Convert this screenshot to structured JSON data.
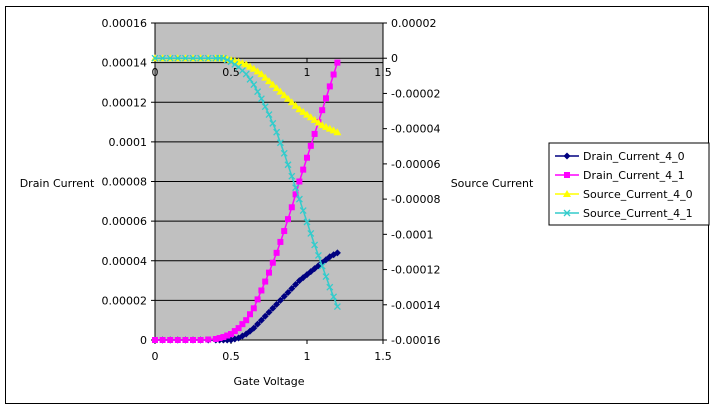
{
  "chart_data": {
    "type": "line",
    "xlabel": "Gate Voltage",
    "ylabel_left": "Drain Current",
    "ylabel_right": "Source Current",
    "x_axis": {
      "min": 0,
      "max": 1.5,
      "ticks": [
        "0",
        "0.5",
        "1",
        "1.5"
      ]
    },
    "y_left": {
      "min": 0,
      "max": 0.00016,
      "ticks": [
        "0",
        "0.00002",
        "0.00004",
        "0.00006",
        "0.00008",
        "0.0001",
        "0.00012",
        "0.00014",
        "0.00016"
      ]
    },
    "y_right": {
      "min": -0.00016,
      "max": 2e-05,
      "ticks": [
        "-0.00016",
        "-0.00014",
        "-0.00012",
        "-0.0001",
        "-0.00008",
        "-0.00006",
        "-0.00004",
        "-0.00002",
        "0",
        "0.00002"
      ]
    },
    "secondary_x_ticks": [
      "0",
      "0.5",
      "1",
      "1.5"
    ],
    "grid": true,
    "legend_position": "right",
    "series": [
      {
        "name": "Drain_Current_4_0",
        "axis": "left",
        "color": "#000080",
        "marker": "diamond",
        "x": [
          0,
          0.1,
          0.2,
          0.3,
          0.4,
          0.45,
          0.5,
          0.55,
          0.6,
          0.65,
          0.7,
          0.75,
          0.8,
          0.85,
          0.9,
          0.95,
          1.0,
          1.05,
          1.1,
          1.15,
          1.2
        ],
        "y": [
          0,
          0,
          0,
          0,
          0,
          0,
          0,
          1e-06,
          3e-06,
          6e-06,
          1e-05,
          1.4e-05,
          1.8e-05,
          2.2e-05,
          2.6e-05,
          3e-05,
          3.3e-05,
          3.6e-05,
          3.9e-05,
          4.2e-05,
          4.4e-05
        ]
      },
      {
        "name": "Drain_Current_4_1",
        "axis": "left",
        "color": "#FF00FF",
        "marker": "square",
        "x": [
          0,
          0.1,
          0.2,
          0.3,
          0.4,
          0.45,
          0.5,
          0.55,
          0.6,
          0.65,
          0.7,
          0.75,
          0.8,
          0.85,
          0.9,
          0.95,
          1.0,
          1.05,
          1.1,
          1.15,
          1.2
        ],
        "y": [
          0,
          0,
          0,
          0,
          5e-07,
          1.5e-06,
          3e-06,
          6e-06,
          1e-05,
          1.6e-05,
          2.5e-05,
          3.4e-05,
          4.4e-05,
          5.5e-05,
          6.7e-05,
          8e-05,
          9.2e-05,
          0.000104,
          0.000116,
          0.000128,
          0.00014
        ]
      },
      {
        "name": "Source_Current_4_0",
        "axis": "right",
        "color": "#FFFF00",
        "marker": "triangle",
        "x": [
          0,
          0.1,
          0.2,
          0.3,
          0.4,
          0.45,
          0.5,
          0.55,
          0.6,
          0.65,
          0.7,
          0.75,
          0.8,
          0.85,
          0.9,
          0.95,
          1.0,
          1.05,
          1.1,
          1.15,
          1.2
        ],
        "y": [
          0,
          0,
          0,
          0,
          0,
          0,
          -1e-06,
          -2e-06,
          -3.5e-06,
          -6e-06,
          -9e-06,
          -1.3e-05,
          -1.7e-05,
          -2.1e-05,
          -2.5e-05,
          -2.9e-05,
          -3.2e-05,
          -3.5e-05,
          -3.8e-05,
          -4e-05,
          -4.2e-05
        ]
      },
      {
        "name": "Source_Current_4_1",
        "axis": "right",
        "color": "#33CCCC",
        "marker": "x",
        "x": [
          0,
          0.1,
          0.2,
          0.3,
          0.4,
          0.45,
          0.5,
          0.55,
          0.6,
          0.65,
          0.7,
          0.75,
          0.8,
          0.85,
          0.9,
          0.95,
          1.0,
          1.05,
          1.1,
          1.15,
          1.2
        ],
        "y": [
          0,
          0,
          0,
          0,
          0,
          0,
          -2e-06,
          -5e-06,
          -9e-06,
          -1.5e-05,
          -2.3e-05,
          -3.2e-05,
          -4.2e-05,
          -5.4e-05,
          -6.7e-05,
          -8e-05,
          -9.3e-05,
          -0.000106,
          -0.000118,
          -0.00013,
          -0.000141
        ]
      }
    ]
  }
}
